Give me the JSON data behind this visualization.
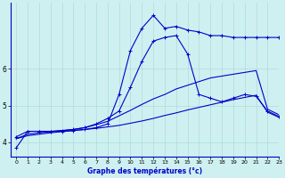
{
  "title": "",
  "xlabel": "Graphe des températures (°c)",
  "bg_color": "#cff0f0",
  "grid_color": "#aadddd",
  "line_color": "#0000cc",
  "ylim": [
    3.6,
    7.8
  ],
  "xlim": [
    -0.5,
    23
  ],
  "yticks": [
    4,
    5,
    6
  ],
  "ytick_labels": [
    "4",
    "5",
    "6"
  ],
  "xticks": [
    0,
    1,
    2,
    3,
    4,
    5,
    6,
    7,
    8,
    9,
    10,
    11,
    12,
    13,
    14,
    15,
    16,
    17,
    18,
    19,
    20,
    21,
    22,
    23
  ],
  "lines": [
    {
      "x": [
        0,
        1,
        2,
        3,
        4,
        5,
        6,
        7,
        8,
        9,
        10,
        11,
        12,
        13,
        14,
        15,
        16,
        17,
        18,
        19,
        20,
        21,
        22,
        23
      ],
      "y": [
        3.85,
        4.3,
        4.3,
        4.3,
        4.3,
        4.32,
        4.35,
        4.4,
        4.5,
        5.3,
        6.5,
        7.1,
        7.45,
        7.1,
        7.15,
        7.05,
        7.0,
        6.9,
        6.9,
        6.85,
        6.85,
        6.85,
        6.85,
        6.85
      ],
      "marker": true
    },
    {
      "x": [
        0,
        1,
        2,
        3,
        4,
        5,
        6,
        7,
        8,
        9,
        10,
        11,
        12,
        13,
        14,
        15,
        16,
        17,
        18,
        19,
        20,
        21,
        22,
        23
      ],
      "y": [
        4.15,
        4.3,
        4.3,
        4.3,
        4.32,
        4.35,
        4.4,
        4.5,
        4.65,
        4.85,
        5.5,
        6.2,
        6.75,
        6.85,
        6.9,
        6.4,
        5.3,
        5.2,
        5.1,
        5.2,
        5.3,
        5.25,
        4.85,
        4.7
      ],
      "marker": true
    },
    {
      "x": [
        0,
        1,
        2,
        3,
        4,
        5,
        6,
        7,
        8,
        9,
        10,
        11,
        12,
        13,
        14,
        15,
        16,
        17,
        18,
        19,
        20,
        21,
        22,
        23
      ],
      "y": [
        4.1,
        4.22,
        4.26,
        4.29,
        4.32,
        4.35,
        4.4,
        4.48,
        4.57,
        4.72,
        4.87,
        5.03,
        5.18,
        5.3,
        5.45,
        5.55,
        5.65,
        5.75,
        5.8,
        5.85,
        5.9,
        5.95,
        4.9,
        4.75
      ],
      "marker": false
    },
    {
      "x": [
        0,
        1,
        2,
        3,
        4,
        5,
        6,
        7,
        8,
        9,
        10,
        11,
        12,
        13,
        14,
        15,
        16,
        17,
        18,
        19,
        20,
        21,
        22,
        23
      ],
      "y": [
        4.1,
        4.18,
        4.22,
        4.26,
        4.29,
        4.32,
        4.35,
        4.38,
        4.42,
        4.46,
        4.52,
        4.58,
        4.65,
        4.73,
        4.8,
        4.88,
        4.95,
        5.02,
        5.09,
        5.16,
        5.22,
        5.28,
        4.82,
        4.68
      ],
      "marker": false
    }
  ]
}
